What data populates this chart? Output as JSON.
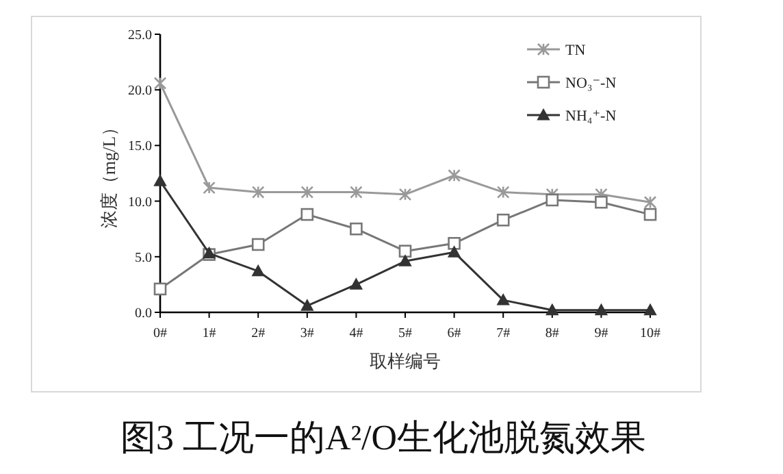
{
  "chart_data": {
    "type": "line",
    "xlabel": "取样编号",
    "ylabel": "浓度（mg/L）",
    "categories": [
      "0#",
      "1#",
      "2#",
      "3#",
      "4#",
      "5#",
      "6#",
      "7#",
      "8#",
      "9#",
      "10#"
    ],
    "series": [
      {
        "name": "TN",
        "color": "#999999",
        "marker": "cross",
        "values": [
          20.6,
          11.2,
          10.8,
          10.8,
          10.8,
          10.6,
          12.3,
          10.8,
          10.6,
          10.6,
          9.9
        ]
      },
      {
        "name": "NO₃⁻-N",
        "color": "#777777",
        "marker": "square",
        "values": [
          2.1,
          5.2,
          6.1,
          8.8,
          7.5,
          5.5,
          6.2,
          8.3,
          10.1,
          9.9,
          8.8
        ]
      },
      {
        "name": "NH₄⁺-N",
        "color": "#333333",
        "marker": "triangle",
        "values": [
          11.8,
          5.3,
          3.7,
          0.6,
          2.5,
          4.6,
          5.4,
          1.1,
          0.2,
          0.2,
          0.2
        ]
      }
    ],
    "ylim": [
      0,
      25
    ],
    "yticks": [
      {
        "value": 0,
        "label": "0.0"
      },
      {
        "value": 5,
        "label": "5.0"
      },
      {
        "value": 10,
        "label": "10.0"
      },
      {
        "value": 15,
        "label": "15.0"
      },
      {
        "value": 20,
        "label": "20.0"
      },
      {
        "value": 25,
        "label": "25.0"
      }
    ],
    "grid": false,
    "legend": "top right",
    "line_style": "solid",
    "annotations": [
      "图3 工况一的A²/O生化池脱氮效果"
    ]
  }
}
